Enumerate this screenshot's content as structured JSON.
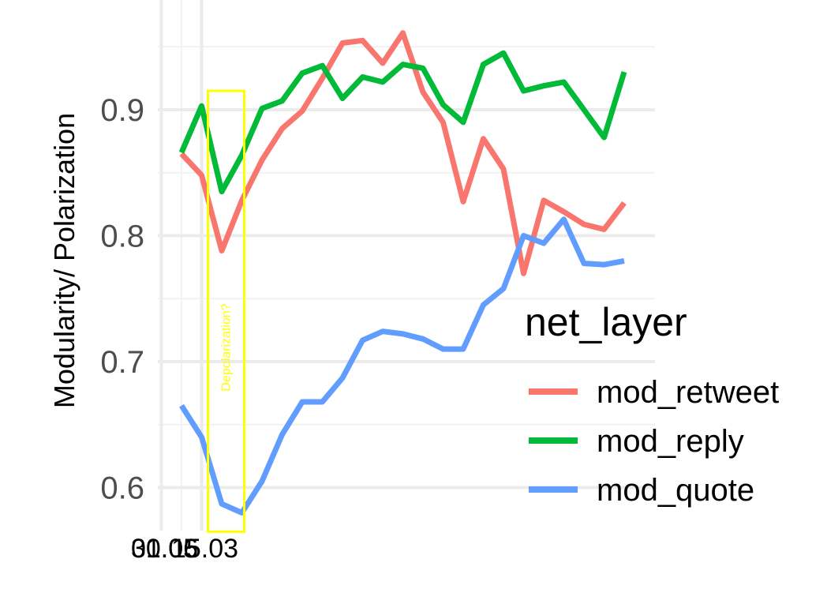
{
  "chart_data": {
    "type": "line",
    "ylabel": "Modularity/ Polarization",
    "xlabel": "",
    "x_ticks": [
      "15.03",
      "01.05",
      "30.06"
    ],
    "y_ticks": [
      0.6,
      0.7,
      0.8,
      0.9
    ],
    "ylim": [
      0.565,
      0.975
    ],
    "grid": true,
    "legend_title": "net_layer",
    "legend_position": "right",
    "x": [
      "10.03",
      "15.03",
      "20.03",
      "25.03",
      "30.03",
      "04.04",
      "09.04",
      "14.04",
      "19.04",
      "24.04",
      "29.04",
      "04.05",
      "09.05",
      "14.05",
      "19.05",
      "24.05",
      "29.05",
      "03.06",
      "08.06",
      "13.06",
      "18.06",
      "23.06",
      "28.06",
      "03.07"
    ],
    "series": [
      {
        "name": "mod_retweet",
        "color": "#F8766D",
        "values": [
          0.865,
          0.848,
          0.788,
          0.828,
          0.86,
          0.885,
          0.899,
          0.925,
          0.953,
          0.955,
          0.937,
          0.961,
          0.914,
          0.89,
          0.827,
          0.877,
          0.853,
          0.77,
          0.828,
          0.819,
          0.809,
          0.805,
          0.826,
          null
        ]
      },
      {
        "name": "mod_reply",
        "color": "#00BA38",
        "values": [
          0.866,
          0.903,
          0.835,
          0.864,
          0.901,
          0.907,
          0.929,
          0.935,
          0.909,
          0.926,
          0.922,
          0.936,
          0.933,
          0.904,
          0.89,
          0.936,
          0.945,
          0.915,
          0.919,
          0.922,
          0.9,
          0.878,
          0.93,
          null
        ]
      },
      {
        "name": "mod_quote",
        "color": "#619CFF",
        "values": [
          0.665,
          0.64,
          0.587,
          0.58,
          0.605,
          0.642,
          0.668,
          0.668,
          0.687,
          0.717,
          0.724,
          0.722,
          0.718,
          0.71,
          0.71,
          0.745,
          0.758,
          0.8,
          0.794,
          0.813,
          0.778,
          0.777,
          0.78,
          null
        ]
      }
    ],
    "annotation": {
      "text": "Depolarization?",
      "color": "#FFFF00",
      "x_range": [
        "15.03",
        "25.03"
      ],
      "y_range": [
        0.57,
        0.915
      ]
    }
  }
}
